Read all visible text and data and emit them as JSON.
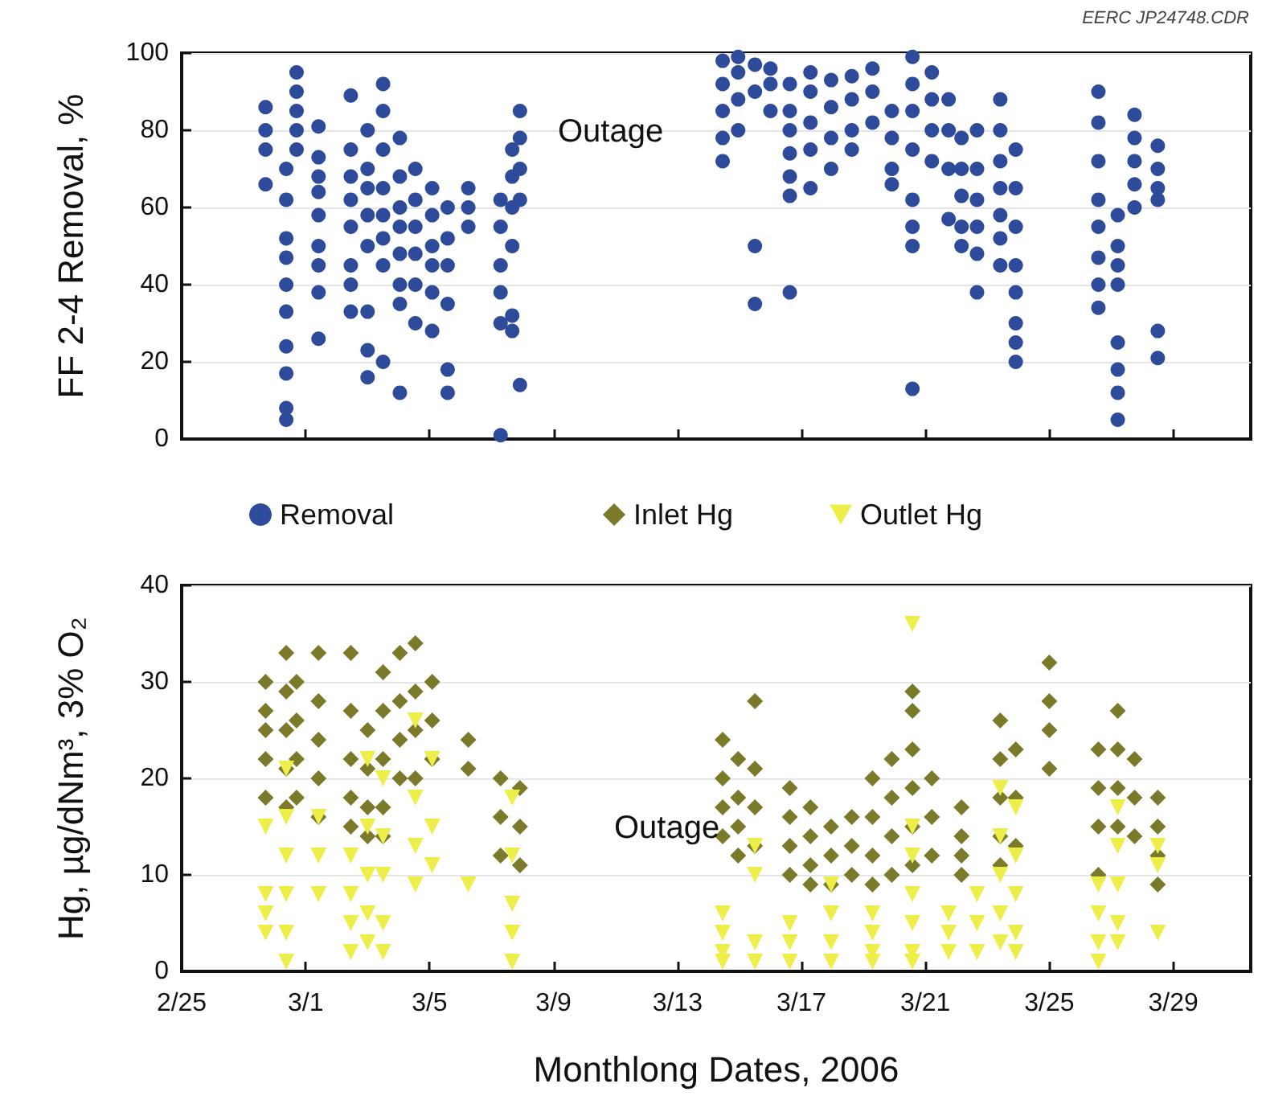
{
  "chart_data": [
    {
      "type": "scatter",
      "ylabel": "FF 2-4 Removal, %",
      "xlim": [
        "2006-02-25",
        "2006-03-31T12:00"
      ],
      "xticks": [
        {
          "value": "2006-02-25",
          "label": null
        },
        {
          "value": "2006-03-01",
          "label": null
        },
        {
          "value": "2006-03-05",
          "label": null
        },
        {
          "value": "2006-03-09",
          "label": null
        },
        {
          "value": "2006-03-13",
          "label": null
        },
        {
          "value": "2006-03-17",
          "label": null
        },
        {
          "value": "2006-03-21",
          "label": null
        },
        {
          "value": "2006-03-25",
          "label": null
        },
        {
          "value": "2006-03-29",
          "label": null
        }
      ],
      "ylim": [
        0,
        100
      ],
      "yticks": [
        0,
        20,
        40,
        60,
        80,
        100
      ],
      "grid": "y",
      "legend": "bottom",
      "tick_labels": "y",
      "annotations": [
        "EERC JP24748.CDR",
        "Outage"
      ],
      "series": [
        {
          "name": "Removal",
          "color": "#2e4a9a",
          "marker": "circle",
          "x": [
            "2006-02-27T17:00",
            "2006-02-27T17:00",
            "2006-02-27T17:00",
            "2006-02-27T17:00",
            "2006-02-28T09:00",
            "2006-02-28T09:00",
            "2006-02-28T09:00",
            "2006-02-28T09:00",
            "2006-02-28T09:00",
            "2006-02-28T09:00",
            "2006-02-28T09:00",
            "2006-02-28T09:00",
            "2006-02-28T09:00",
            "2006-02-28T09:00",
            "2006-02-28T17:00",
            "2006-02-28T17:00",
            "2006-02-28T17:00",
            "2006-02-28T17:00",
            "2006-02-28T17:00",
            "2006-03-01T10:00",
            "2006-03-01T10:00",
            "2006-03-01T10:00",
            "2006-03-01T10:00",
            "2006-03-01T10:00",
            "2006-03-01T10:00",
            "2006-03-01T10:00",
            "2006-03-01T10:00",
            "2006-03-01T10:00",
            "2006-03-02T11:00",
            "2006-03-02T11:00",
            "2006-03-02T11:00",
            "2006-03-02T11:00",
            "2006-03-02T11:00",
            "2006-03-02T11:00",
            "2006-03-02T11:00",
            "2006-03-02T11:00",
            "2006-03-03T00:00",
            "2006-03-03T00:00",
            "2006-03-03T00:00",
            "2006-03-03T00:00",
            "2006-03-03T00:00",
            "2006-03-03T00:00",
            "2006-03-03T00:00",
            "2006-03-03T00:00",
            "2006-03-03T12:00",
            "2006-03-03T12:00",
            "2006-03-03T12:00",
            "2006-03-03T12:00",
            "2006-03-03T12:00",
            "2006-03-03T12:00",
            "2006-03-03T12:00",
            "2006-03-03T12:00",
            "2006-03-04T01:00",
            "2006-03-04T01:00",
            "2006-03-04T01:00",
            "2006-03-04T01:00",
            "2006-03-04T01:00",
            "2006-03-04T01:00",
            "2006-03-04T01:00",
            "2006-03-04T01:00",
            "2006-03-04T13:00",
            "2006-03-04T13:00",
            "2006-03-04T13:00",
            "2006-03-04T13:00",
            "2006-03-04T13:00",
            "2006-03-04T13:00",
            "2006-03-05T02:00",
            "2006-03-05T02:00",
            "2006-03-05T02:00",
            "2006-03-05T02:00",
            "2006-03-05T02:00",
            "2006-03-05T02:00",
            "2006-03-05T14:00",
            "2006-03-05T14:00",
            "2006-03-05T14:00",
            "2006-03-05T14:00",
            "2006-03-05T14:00",
            "2006-03-05T14:00",
            "2006-03-06T06:00",
            "2006-03-06T06:00",
            "2006-03-06T06:00",
            "2006-03-07T07:00",
            "2006-03-07T07:00",
            "2006-03-07T07:00",
            "2006-03-07T07:00",
            "2006-03-07T07:00",
            "2006-03-07T07:00",
            "2006-03-07T16:00",
            "2006-03-07T16:00",
            "2006-03-07T16:00",
            "2006-03-07T16:00",
            "2006-03-07T16:00",
            "2006-03-07T16:00",
            "2006-03-07T22:00",
            "2006-03-07T22:00",
            "2006-03-07T22:00",
            "2006-03-07T22:00",
            "2006-03-07T22:00",
            "2006-03-14T11:00",
            "2006-03-14T11:00",
            "2006-03-14T11:00",
            "2006-03-14T11:00",
            "2006-03-14T11:00",
            "2006-03-14T23:00",
            "2006-03-14T23:00",
            "2006-03-14T23:00",
            "2006-03-14T23:00",
            "2006-03-15T12:00",
            "2006-03-15T12:00",
            "2006-03-15T12:00",
            "2006-03-15T12:00",
            "2006-03-16T00:00",
            "2006-03-16T00:00",
            "2006-03-16T00:00",
            "2006-03-16T15:00",
            "2006-03-16T15:00",
            "2006-03-16T15:00",
            "2006-03-16T15:00",
            "2006-03-16T15:00",
            "2006-03-16T15:00",
            "2006-03-16T15:00",
            "2006-03-17T07:00",
            "2006-03-17T07:00",
            "2006-03-17T07:00",
            "2006-03-17T07:00",
            "2006-03-17T07:00",
            "2006-03-17T23:00",
            "2006-03-17T23:00",
            "2006-03-17T23:00",
            "2006-03-17T23:00",
            "2006-03-18T15:00",
            "2006-03-18T15:00",
            "2006-03-18T15:00",
            "2006-03-18T15:00",
            "2006-03-19T07:00",
            "2006-03-19T07:00",
            "2006-03-19T07:00",
            "2006-03-19T22:00",
            "2006-03-19T22:00",
            "2006-03-19T22:00",
            "2006-03-19T22:00",
            "2006-03-20T14:00",
            "2006-03-20T14:00",
            "2006-03-20T14:00",
            "2006-03-20T14:00",
            "2006-03-20T14:00",
            "2006-03-20T14:00",
            "2006-03-20T14:00",
            "2006-03-20T14:00",
            "2006-03-21T05:00",
            "2006-03-21T05:00",
            "2006-03-21T05:00",
            "2006-03-21T05:00",
            "2006-03-21T18:00",
            "2006-03-21T18:00",
            "2006-03-21T18:00",
            "2006-03-21T18:00",
            "2006-03-22T04:00",
            "2006-03-22T04:00",
            "2006-03-22T04:00",
            "2006-03-22T04:00",
            "2006-03-22T04:00",
            "2006-03-22T16:00",
            "2006-03-22T16:00",
            "2006-03-22T16:00",
            "2006-03-22T16:00",
            "2006-03-22T16:00",
            "2006-03-22T16:00",
            "2006-03-23T10:00",
            "2006-03-23T10:00",
            "2006-03-23T10:00",
            "2006-03-23T10:00",
            "2006-03-23T10:00",
            "2006-03-23T10:00",
            "2006-03-23T10:00",
            "2006-03-23T22:00",
            "2006-03-23T22:00",
            "2006-03-23T22:00",
            "2006-03-23T22:00",
            "2006-03-23T22:00",
            "2006-03-23T22:00",
            "2006-03-23T22:00",
            "2006-03-23T22:00",
            "2006-03-26T14:00",
            "2006-03-26T14:00",
            "2006-03-26T14:00",
            "2006-03-26T14:00",
            "2006-03-26T14:00",
            "2006-03-26T14:00",
            "2006-03-26T14:00",
            "2006-03-26T14:00",
            "2006-03-27T05:00",
            "2006-03-27T05:00",
            "2006-03-27T05:00",
            "2006-03-27T05:00",
            "2006-03-27T05:00",
            "2006-03-27T05:00",
            "2006-03-27T05:00",
            "2006-03-27T05:00",
            "2006-03-27T18:00",
            "2006-03-27T18:00",
            "2006-03-27T18:00",
            "2006-03-27T18:00",
            "2006-03-27T18:00",
            "2006-03-28T12:00",
            "2006-03-28T12:00",
            "2006-03-28T12:00",
            "2006-03-28T12:00",
            "2006-03-28T12:00",
            "2006-03-28T12:00"
          ],
          "values": [
            86,
            80,
            75,
            66,
            70,
            62,
            52,
            47,
            40,
            33,
            24,
            17,
            8,
            5,
            95,
            90,
            85,
            80,
            75,
            81,
            73,
            68,
            64,
            58,
            50,
            45,
            38,
            26,
            89,
            75,
            68,
            62,
            55,
            45,
            40,
            33,
            80,
            70,
            65,
            58,
            50,
            33,
            23,
            16,
            92,
            85,
            75,
            65,
            58,
            52,
            45,
            20,
            78,
            68,
            60,
            55,
            48,
            40,
            35,
            12,
            70,
            62,
            55,
            48,
            40,
            30,
            65,
            58,
            50,
            45,
            38,
            28,
            60,
            52,
            45,
            35,
            18,
            12,
            65,
            60,
            55,
            62,
            55,
            45,
            38,
            30,
            1,
            75,
            68,
            60,
            50,
            28,
            32,
            85,
            78,
            70,
            62,
            14,
            98,
            92,
            85,
            78,
            72,
            99,
            95,
            88,
            80,
            97,
            90,
            50,
            35,
            96,
            92,
            85,
            92,
            85,
            80,
            74,
            68,
            63,
            38,
            95,
            90,
            82,
            75,
            65,
            93,
            86,
            78,
            70,
            94,
            88,
            80,
            75,
            96,
            90,
            82,
            85,
            78,
            70,
            66,
            99,
            92,
            85,
            75,
            62,
            55,
            50,
            13,
            95,
            88,
            80,
            72,
            88,
            80,
            70,
            57,
            78,
            70,
            63,
            55,
            50,
            80,
            70,
            62,
            55,
            48,
            38,
            88,
            80,
            72,
            65,
            58,
            52,
            45,
            75,
            65,
            55,
            45,
            38,
            30,
            25,
            20,
            90,
            82,
            72,
            62,
            55,
            47,
            40,
            34,
            58,
            50,
            45,
            40,
            25,
            18,
            12,
            5,
            84,
            78,
            72,
            66,
            60,
            76,
            70,
            65,
            62,
            28,
            21
          ]
        }
      ]
    },
    {
      "type": "scatter",
      "ylabel": "Hg, µg/dNm³, 3% O₂",
      "xlabel": "Monthlong Dates, 2006",
      "xlim": [
        "2006-02-25",
        "2006-03-31T12:00"
      ],
      "xticks": [
        {
          "value": "2006-02-25",
          "label": "2/25"
        },
        {
          "value": "2006-03-01",
          "label": "3/1"
        },
        {
          "value": "2006-03-05",
          "label": "3/5"
        },
        {
          "value": "2006-03-09",
          "label": "3/9"
        },
        {
          "value": "2006-03-13",
          "label": "3/13"
        },
        {
          "value": "2006-03-17",
          "label": "3/17"
        },
        {
          "value": "2006-03-21",
          "label": "3/21"
        },
        {
          "value": "2006-03-25",
          "label": "3/25"
        },
        {
          "value": "2006-03-29",
          "label": "3/29"
        }
      ],
      "ylim": [
        0,
        40
      ],
      "yticks": [
        0,
        10,
        20,
        30,
        40
      ],
      "grid": "y",
      "legend": "top",
      "annotations": [
        "Outage"
      ],
      "series": [
        {
          "name": "Inlet Hg",
          "color": "#7a7a2a",
          "marker": "diamond",
          "x": [
            "2006-02-27T17:00",
            "2006-02-27T17:00",
            "2006-02-27T17:00",
            "2006-02-27T17:00",
            "2006-02-27T17:00",
            "2006-02-28T09:00",
            "2006-02-28T09:00",
            "2006-02-28T09:00",
            "2006-02-28T09:00",
            "2006-02-28T09:00",
            "2006-02-28T17:00",
            "2006-02-28T17:00",
            "2006-02-28T17:00",
            "2006-02-28T17:00",
            "2006-03-01T10:00",
            "2006-03-01T10:00",
            "2006-03-01T10:00",
            "2006-03-01T10:00",
            "2006-03-01T10:00",
            "2006-03-02T11:00",
            "2006-03-02T11:00",
            "2006-03-02T11:00",
            "2006-03-02T11:00",
            "2006-03-02T11:00",
            "2006-03-03T00:00",
            "2006-03-03T00:00",
            "2006-03-03T00:00",
            "2006-03-03T00:00",
            "2006-03-03T12:00",
            "2006-03-03T12:00",
            "2006-03-03T12:00",
            "2006-03-03T12:00",
            "2006-03-03T12:00",
            "2006-03-04T01:00",
            "2006-03-04T01:00",
            "2006-03-04T01:00",
            "2006-03-04T01:00",
            "2006-03-04T13:00",
            "2006-03-04T13:00",
            "2006-03-04T13:00",
            "2006-03-04T13:00",
            "2006-03-05T02:00",
            "2006-03-05T02:00",
            "2006-03-05T02:00",
            "2006-03-06T06:00",
            "2006-03-06T06:00",
            "2006-03-07T07:00",
            "2006-03-07T07:00",
            "2006-03-07T07:00",
            "2006-03-07T22:00",
            "2006-03-07T22:00",
            "2006-03-07T22:00",
            "2006-03-14T11:00",
            "2006-03-14T11:00",
            "2006-03-14T11:00",
            "2006-03-14T11:00",
            "2006-03-14T23:00",
            "2006-03-14T23:00",
            "2006-03-14T23:00",
            "2006-03-14T23:00",
            "2006-03-15T12:00",
            "2006-03-15T12:00",
            "2006-03-15T12:00",
            "2006-03-15T12:00",
            "2006-03-16T15:00",
            "2006-03-16T15:00",
            "2006-03-16T15:00",
            "2006-03-16T15:00",
            "2006-03-17T07:00",
            "2006-03-17T07:00",
            "2006-03-17T07:00",
            "2006-03-17T07:00",
            "2006-03-17T23:00",
            "2006-03-17T23:00",
            "2006-03-17T23:00",
            "2006-03-18T15:00",
            "2006-03-18T15:00",
            "2006-03-18T15:00",
            "2006-03-19T07:00",
            "2006-03-19T07:00",
            "2006-03-19T07:00",
            "2006-03-19T07:00",
            "2006-03-19T22:00",
            "2006-03-19T22:00",
            "2006-03-19T22:00",
            "2006-03-19T22:00",
            "2006-03-20T14:00",
            "2006-03-20T14:00",
            "2006-03-20T14:00",
            "2006-03-20T14:00",
            "2006-03-20T14:00",
            "2006-03-20T14:00",
            "2006-03-21T05:00",
            "2006-03-21T05:00",
            "2006-03-21T05:00",
            "2006-03-22T04:00",
            "2006-03-22T04:00",
            "2006-03-22T04:00",
            "2006-03-22T04:00",
            "2006-03-23T10:00",
            "2006-03-23T10:00",
            "2006-03-23T10:00",
            "2006-03-23T10:00",
            "2006-03-23T10:00",
            "2006-03-23T22:00",
            "2006-03-23T22:00",
            "2006-03-23T22:00",
            "2006-03-25T00:00",
            "2006-03-25T00:00",
            "2006-03-25T00:00",
            "2006-03-25T00:00",
            "2006-03-26T14:00",
            "2006-03-26T14:00",
            "2006-03-26T14:00",
            "2006-03-26T14:00",
            "2006-03-27T05:00",
            "2006-03-27T05:00",
            "2006-03-27T05:00",
            "2006-03-27T05:00",
            "2006-03-27T18:00",
            "2006-03-27T18:00",
            "2006-03-27T18:00",
            "2006-03-28T12:00",
            "2006-03-28T12:00",
            "2006-03-28T12:00",
            "2006-03-28T12:00"
          ],
          "values": [
            30,
            27,
            25,
            22,
            18,
            33,
            29,
            25,
            21,
            17,
            30,
            26,
            22,
            18,
            33,
            28,
            24,
            20,
            16,
            33,
            27,
            22,
            18,
            15,
            25,
            21,
            17,
            14,
            31,
            27,
            22,
            17,
            14,
            33,
            28,
            24,
            20,
            34,
            29,
            25,
            20,
            30,
            26,
            22,
            24,
            21,
            20,
            16,
            12,
            19,
            15,
            11,
            24,
            20,
            17,
            14,
            22,
            18,
            15,
            12,
            28,
            21,
            17,
            13,
            19,
            16,
            13,
            10,
            17,
            14,
            11,
            9,
            15,
            12,
            9,
            16,
            13,
            10,
            20,
            16,
            12,
            9,
            22,
            18,
            14,
            10,
            29,
            27,
            23,
            19,
            15,
            11,
            20,
            16,
            12,
            17,
            14,
            12,
            10,
            26,
            22,
            18,
            14,
            11,
            23,
            18,
            13,
            32,
            28,
            25,
            21,
            23,
            19,
            15,
            10,
            27,
            23,
            19,
            15,
            22,
            18,
            14,
            18,
            15,
            12,
            9
          ]
        },
        {
          "name": "Outlet Hg",
          "color": "#eeee4a",
          "marker": "triangle",
          "x": [
            "2006-02-27T17:00",
            "2006-02-27T17:00",
            "2006-02-27T17:00",
            "2006-02-27T17:00",
            "2006-02-28T09:00",
            "2006-02-28T09:00",
            "2006-02-28T09:00",
            "2006-02-28T09:00",
            "2006-02-28T09:00",
            "2006-02-28T09:00",
            "2006-03-01T10:00",
            "2006-03-01T10:00",
            "2006-03-01T10:00",
            "2006-03-02T11:00",
            "2006-03-02T11:00",
            "2006-03-02T11:00",
            "2006-03-02T11:00",
            "2006-03-03T00:00",
            "2006-03-03T00:00",
            "2006-03-03T00:00",
            "2006-03-03T00:00",
            "2006-03-03T00:00",
            "2006-03-03T12:00",
            "2006-03-03T12:00",
            "2006-03-03T12:00",
            "2006-03-03T12:00",
            "2006-03-03T12:00",
            "2006-03-04T13:00",
            "2006-03-04T13:00",
            "2006-03-04T13:00",
            "2006-03-04T13:00",
            "2006-03-05T02:00",
            "2006-03-05T02:00",
            "2006-03-05T02:00",
            "2006-03-06T06:00",
            "2006-03-07T16:00",
            "2006-03-07T16:00",
            "2006-03-07T16:00",
            "2006-03-07T16:00",
            "2006-03-07T16:00",
            "2006-03-14T11:00",
            "2006-03-14T11:00",
            "2006-03-14T11:00",
            "2006-03-14T11:00",
            "2006-03-15T12:00",
            "2006-03-15T12:00",
            "2006-03-15T12:00",
            "2006-03-15T12:00",
            "2006-03-16T15:00",
            "2006-03-16T15:00",
            "2006-03-16T15:00",
            "2006-03-17T23:00",
            "2006-03-17T23:00",
            "2006-03-17T23:00",
            "2006-03-17T23:00",
            "2006-03-19T07:00",
            "2006-03-19T07:00",
            "2006-03-19T07:00",
            "2006-03-19T07:00",
            "2006-03-20T14:00",
            "2006-03-20T14:00",
            "2006-03-20T14:00",
            "2006-03-20T14:00",
            "2006-03-20T14:00",
            "2006-03-20T14:00",
            "2006-03-20T14:00",
            "2006-03-21T18:00",
            "2006-03-21T18:00",
            "2006-03-21T18:00",
            "2006-03-22T16:00",
            "2006-03-22T16:00",
            "2006-03-22T16:00",
            "2006-03-23T10:00",
            "2006-03-23T10:00",
            "2006-03-23T10:00",
            "2006-03-23T10:00",
            "2006-03-23T10:00",
            "2006-03-23T22:00",
            "2006-03-23T22:00",
            "2006-03-23T22:00",
            "2006-03-23T22:00",
            "2006-03-23T22:00",
            "2006-03-26T14:00",
            "2006-03-26T14:00",
            "2006-03-26T14:00",
            "2006-03-26T14:00",
            "2006-03-27T05:00",
            "2006-03-27T05:00",
            "2006-03-27T05:00",
            "2006-03-27T05:00",
            "2006-03-27T05:00",
            "2006-03-28T12:00",
            "2006-03-28T12:00",
            "2006-03-28T12:00"
          ],
          "values": [
            15,
            8,
            6,
            4,
            21,
            16,
            12,
            8,
            4,
            1,
            16,
            12,
            8,
            12,
            8,
            5,
            2,
            22,
            15,
            10,
            6,
            3,
            20,
            14,
            10,
            5,
            2,
            26,
            18,
            13,
            9,
            22,
            15,
            11,
            9,
            18,
            12,
            7,
            4,
            1,
            6,
            4,
            2,
            1,
            13,
            10,
            3,
            1,
            5,
            3,
            1,
            9,
            6,
            3,
            1,
            6,
            4,
            2,
            1,
            36,
            15,
            12,
            8,
            5,
            2,
            1,
            6,
            4,
            2,
            8,
            5,
            2,
            19,
            14,
            10,
            6,
            3,
            17,
            12,
            8,
            4,
            2,
            9,
            6,
            3,
            1,
            17,
            13,
            9,
            5,
            3,
            13,
            11,
            4
          ]
        }
      ]
    }
  ]
}
